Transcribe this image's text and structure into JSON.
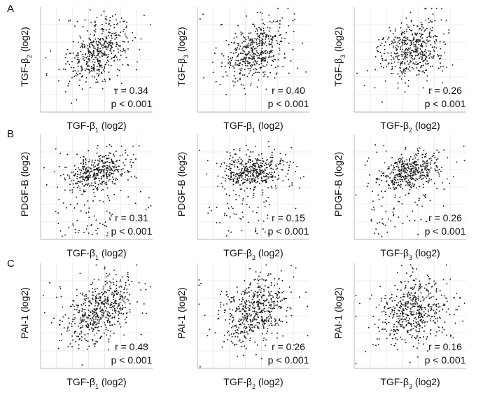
{
  "row_labels": [
    "A",
    "B",
    "C"
  ],
  "chart_data": [
    {
      "type": "scatter",
      "row": 0,
      "col": 0,
      "ylabel": {
        "base": "TGF-β",
        "sub": "2",
        "suffix": " (log2)"
      },
      "xlabel": {
        "base": "TGF-β",
        "sub": "1",
        "suffix": " (log2)"
      },
      "r_text": "r = 0.34",
      "p_text": "p < 0.001",
      "r": 0.34,
      "n_points": 460,
      "style": "central"
    },
    {
      "type": "scatter",
      "row": 0,
      "col": 1,
      "ylabel": {
        "base": "TGF-β",
        "sub": "3",
        "suffix": " (log2)"
      },
      "xlabel": {
        "base": "TGF-β",
        "sub": "1",
        "suffix": " (log2)"
      },
      "r_text": "r = 0.40",
      "p_text": "p < 0.001",
      "r": 0.4,
      "n_points": 460,
      "style": "central"
    },
    {
      "type": "scatter",
      "row": 0,
      "col": 2,
      "ylabel": {
        "base": "TGF-β",
        "sub": "3",
        "suffix": " (log2)"
      },
      "xlabel": {
        "base": "TGF-β",
        "sub": "2",
        "suffix": " (log2)"
      },
      "r_text": "r = 0.26",
      "p_text": "p < 0.001",
      "r": 0.26,
      "n_points": 460,
      "style": "central"
    },
    {
      "type": "scatter",
      "row": 1,
      "col": 0,
      "ylabel": {
        "base": "PDGF-B",
        "sub": "",
        "suffix": " (log2)"
      },
      "xlabel": {
        "base": "TGF-β",
        "sub": "1",
        "suffix": " (log2)"
      },
      "r_text": "r = 0.31",
      "p_text": "p < 0.001",
      "r": 0.31,
      "n_points": 480,
      "style": "tail"
    },
    {
      "type": "scatter",
      "row": 1,
      "col": 1,
      "ylabel": {
        "base": "PDGF-B",
        "sub": "",
        "suffix": " (log2)"
      },
      "xlabel": {
        "base": "TGF-β",
        "sub": "2",
        "suffix": " (log2)"
      },
      "r_text": "r = 0.15",
      "p_text": "p < 0.001",
      "r": 0.15,
      "n_points": 480,
      "style": "tail"
    },
    {
      "type": "scatter",
      "row": 1,
      "col": 2,
      "ylabel": {
        "base": "PDGF-B",
        "sub": "",
        "suffix": " (log2)"
      },
      "xlabel": {
        "base": "TGF-β",
        "sub": "3",
        "suffix": " (log2)"
      },
      "r_text": "r = 0.26",
      "p_text": "p < 0.001",
      "r": 0.26,
      "n_points": 480,
      "style": "tail"
    },
    {
      "type": "scatter",
      "row": 2,
      "col": 0,
      "ylabel": {
        "base": "PAI-1",
        "sub": "",
        "suffix": " (log2)"
      },
      "xlabel": {
        "base": "TGF-β",
        "sub": "1",
        "suffix": " (log2)"
      },
      "r_text": "r = 0.43",
      "p_text": "p < 0.001",
      "r": 0.43,
      "n_points": 520,
      "style": "spread"
    },
    {
      "type": "scatter",
      "row": 2,
      "col": 1,
      "ylabel": {
        "base": "PAI-1",
        "sub": "",
        "suffix": " (log2)"
      },
      "xlabel": {
        "base": "TGF-β",
        "sub": "2",
        "suffix": " (log2)"
      },
      "r_text": "r = 0.26",
      "p_text": "p < 0.001",
      "r": 0.26,
      "n_points": 520,
      "style": "spread"
    },
    {
      "type": "scatter",
      "row": 2,
      "col": 2,
      "ylabel": {
        "base": "PAI-1",
        "sub": "",
        "suffix": " (log2)"
      },
      "xlabel": {
        "base": "TGF-β",
        "sub": "3",
        "suffix": " (log2)"
      },
      "r_text": "r = 0.16",
      "p_text": "p < 0.001",
      "r": 0.16,
      "n_points": 520,
      "style": "spread"
    }
  ]
}
